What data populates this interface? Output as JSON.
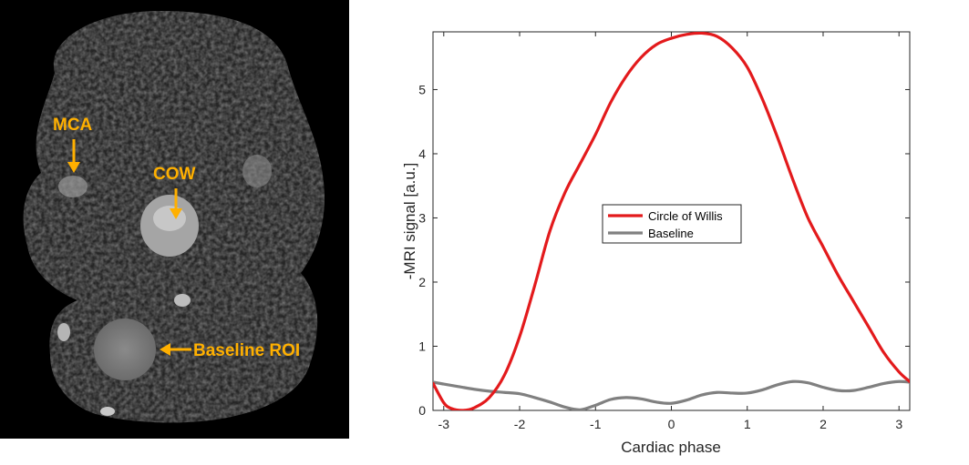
{
  "image_panel": {
    "annotations": [
      {
        "id": "mca",
        "label": "MCA"
      },
      {
        "id": "cow",
        "label": "COW"
      },
      {
        "id": "baseline",
        "label": "Baseline ROI"
      }
    ],
    "annotation_color": "#ffb000"
  },
  "chart_data": {
    "type": "line",
    "title": "",
    "xlabel": "Cardiac phase",
    "ylabel": "-MRI signal [a.u.]",
    "xlim": [
      -3.1416,
      3.1416
    ],
    "ylim": [
      0,
      5.9
    ],
    "xticks": [
      -3,
      -2,
      -1,
      0,
      1,
      2,
      3
    ],
    "yticks": [
      0,
      1,
      2,
      3,
      4,
      5
    ],
    "xtick_labels": [
      "-3",
      "-2",
      "-1",
      "0",
      "1",
      "2",
      "3"
    ],
    "ytick_labels": [
      "0",
      "1",
      "2",
      "3",
      "4",
      "5"
    ],
    "grid": false,
    "legend_position": "center",
    "series": [
      {
        "name": "Circle of Willis",
        "color": "#e31a1c",
        "x": [
          -3.14,
          -3.0,
          -2.9,
          -2.75,
          -2.6,
          -2.4,
          -2.2,
          -2.0,
          -1.8,
          -1.6,
          -1.4,
          -1.2,
          -1.0,
          -0.8,
          -0.6,
          -0.4,
          -0.2,
          0.0,
          0.2,
          0.4,
          0.6,
          0.8,
          1.0,
          1.2,
          1.4,
          1.6,
          1.8,
          2.0,
          2.2,
          2.4,
          2.6,
          2.8,
          3.0,
          3.14
        ],
        "y": [
          0.42,
          0.12,
          0.03,
          0.0,
          0.04,
          0.2,
          0.55,
          1.15,
          1.95,
          2.8,
          3.4,
          3.85,
          4.3,
          4.8,
          5.2,
          5.5,
          5.7,
          5.8,
          5.86,
          5.88,
          5.83,
          5.65,
          5.35,
          4.85,
          4.25,
          3.6,
          3.0,
          2.55,
          2.1,
          1.7,
          1.3,
          0.9,
          0.6,
          0.45
        ]
      },
      {
        "name": "Baseline",
        "color": "#808080",
        "x": [
          -3.14,
          -3.0,
          -2.8,
          -2.6,
          -2.4,
          -2.2,
          -2.0,
          -1.8,
          -1.6,
          -1.4,
          -1.2,
          -1.0,
          -0.8,
          -0.6,
          -0.4,
          -0.2,
          0.0,
          0.2,
          0.4,
          0.6,
          0.8,
          1.0,
          1.2,
          1.4,
          1.6,
          1.8,
          2.0,
          2.2,
          2.4,
          2.6,
          2.8,
          3.0,
          3.14
        ],
        "y": [
          0.44,
          0.41,
          0.37,
          0.33,
          0.3,
          0.28,
          0.26,
          0.2,
          0.13,
          0.05,
          0.01,
          0.08,
          0.17,
          0.2,
          0.18,
          0.13,
          0.11,
          0.16,
          0.24,
          0.28,
          0.27,
          0.27,
          0.32,
          0.4,
          0.45,
          0.43,
          0.36,
          0.31,
          0.31,
          0.36,
          0.42,
          0.45,
          0.44
        ]
      }
    ]
  }
}
